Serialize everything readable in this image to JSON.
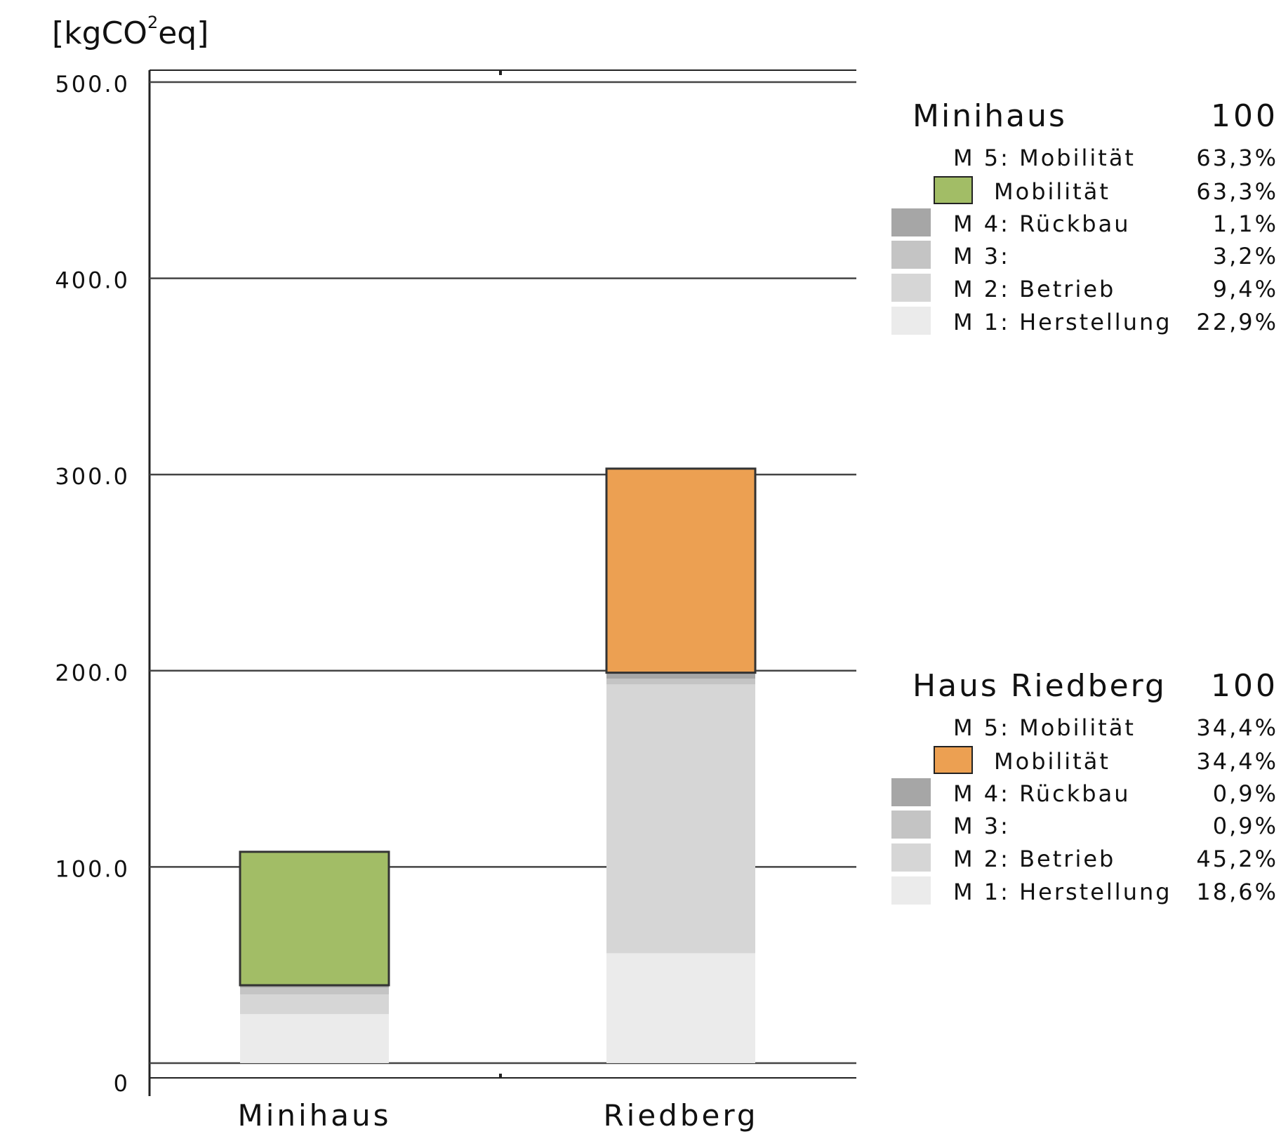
{
  "chart_data": {
    "type": "bar",
    "stacked": true,
    "unit_label_main": "[kgCO",
    "unit_label_sup": "2",
    "unit_label_tail": "eq]",
    "y_ticks": [
      "500.0",
      "400.0",
      "300.0",
      "200.0",
      "100.0",
      "0"
    ],
    "y_tick_values": [
      500,
      400,
      300,
      200,
      100,
      0
    ],
    "ylim": [
      0,
      500
    ],
    "grid": true,
    "categories": [
      "Minihaus",
      "Riedberg"
    ],
    "series": [
      {
        "name": "M 1: Herstellung",
        "color": "#ebebeb",
        "values": [
          25,
          56
        ]
      },
      {
        "name": "M 2: Betrieb",
        "color": "#d6d6d6",
        "values": [
          10,
          137
        ]
      },
      {
        "name": "M 3:",
        "color": "#c4c4c4",
        "values": [
          3.5,
          3
        ]
      },
      {
        "name": "M 4: Rückbau",
        "color": "#a6a6a6",
        "values": [
          1.2,
          3
        ]
      },
      {
        "name": "Mobilität",
        "colors": [
          "#a2bd66",
          "#eca052"
        ],
        "values": [
          68,
          104
        ]
      }
    ]
  },
  "legends": [
    {
      "title": "Minihaus",
      "total": "100",
      "rows": [
        {
          "label": "M 5: Mobilität",
          "pct": "63,3%",
          "swatch": "",
          "indent": false
        },
        {
          "label": "Mobilität",
          "pct": "63,3%",
          "swatch": "#a2bd66",
          "indent": true,
          "framed": true
        },
        {
          "label": "M 4: Rückbau",
          "pct": "1,1%",
          "swatch": "#a6a6a6",
          "indent": false
        },
        {
          "label": "M 3:",
          "pct": "3,2%",
          "swatch": "#c4c4c4",
          "indent": false
        },
        {
          "label": "M 2: Betrieb",
          "pct": "9,4%",
          "swatch": "#d6d6d6",
          "indent": false
        },
        {
          "label": "M 1: Herstellung",
          "pct": "22,9%",
          "swatch": "#ebebeb",
          "indent": false
        }
      ]
    },
    {
      "title": "Haus Riedberg",
      "total": "100",
      "rows": [
        {
          "label": "M 5: Mobilität",
          "pct": "34,4%",
          "swatch": "",
          "indent": false
        },
        {
          "label": "Mobilität",
          "pct": "34,4%",
          "swatch": "#eca052",
          "indent": true,
          "framed": true
        },
        {
          "label": "M 4: Rückbau",
          "pct": "0,9%",
          "swatch": "#a6a6a6",
          "indent": false
        },
        {
          "label": "M 3:",
          "pct": "0,9%",
          "swatch": "#c4c4c4",
          "indent": false
        },
        {
          "label": "M 2: Betrieb",
          "pct": "45,2%",
          "swatch": "#d6d6d6",
          "indent": false
        },
        {
          "label": "M 1: Herstellung",
          "pct": "18,6%",
          "swatch": "#ebebeb",
          "indent": false
        }
      ]
    }
  ]
}
